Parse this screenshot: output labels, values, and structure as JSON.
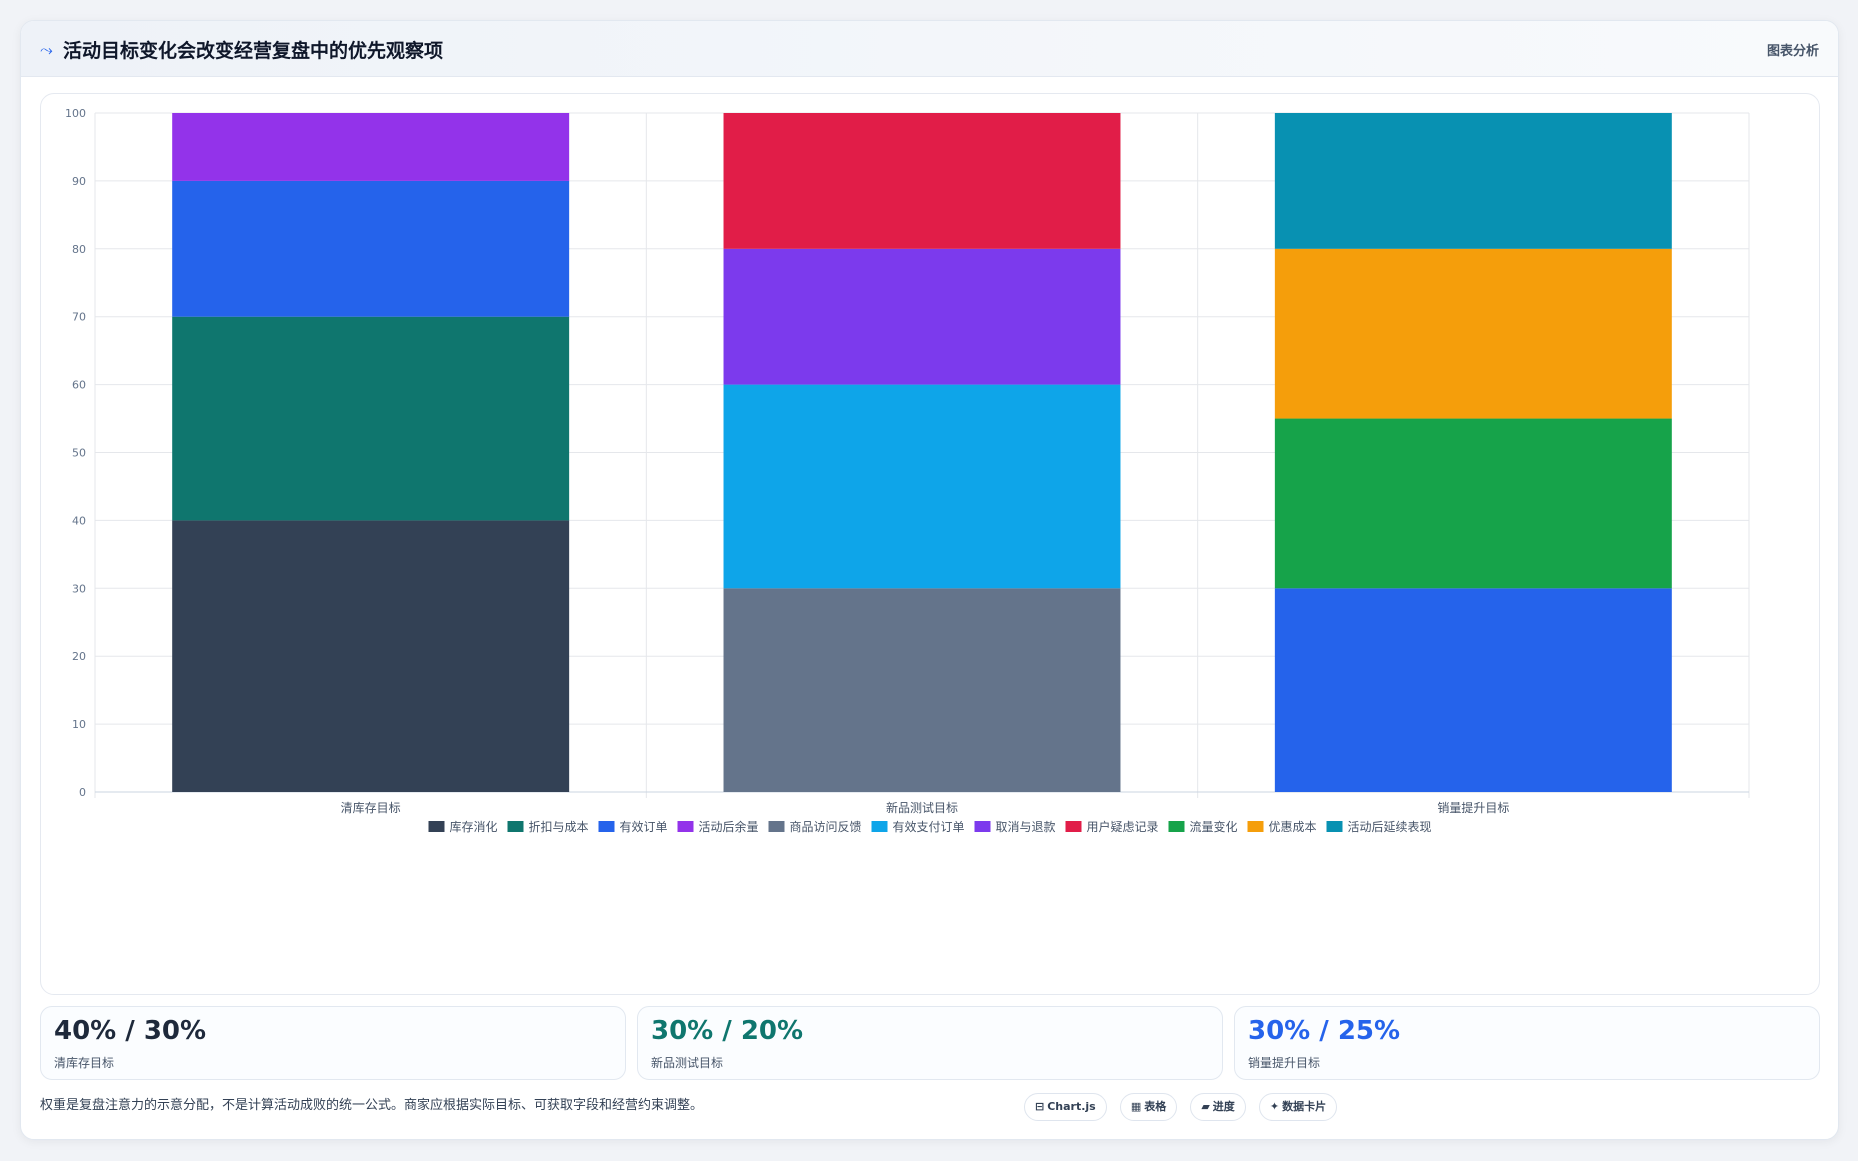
{
  "header": {
    "title": "活动目标变化会改变经营复盘中的优先观察项",
    "action_label": "图表分析",
    "icon": "trend-line-icon"
  },
  "chart_data": {
    "type": "bar",
    "stacked": true,
    "categories": [
      "清库存目标",
      "新品测试目标",
      "销量提升目标"
    ],
    "ylim": [
      0,
      100
    ],
    "yticks": [
      0,
      10,
      20,
      30,
      40,
      50,
      60,
      70,
      80,
      90,
      100
    ],
    "grid": true,
    "legend_position": "bottom",
    "series": [
      {
        "name": "库存消化",
        "color": "#334155",
        "values": [
          40,
          0,
          0
        ]
      },
      {
        "name": "折扣与成本",
        "color": "#0f766e",
        "values": [
          30,
          0,
          0
        ]
      },
      {
        "name": "有效订单",
        "color": "#2563eb",
        "values": [
          20,
          0,
          0
        ]
      },
      {
        "name": "活动后余量",
        "color": "#9333ea",
        "values": [
          10,
          0,
          0
        ]
      },
      {
        "name": "商品访问反馈",
        "color": "#64748b",
        "values": [
          0,
          30,
          0
        ]
      },
      {
        "name": "有效支付订单",
        "color": "#0ea5e9",
        "values": [
          0,
          30,
          0
        ]
      },
      {
        "name": "取消与退款",
        "color": "#7c3aed",
        "values": [
          0,
          20,
          0
        ]
      },
      {
        "name": "用户疑虑记录",
        "color": "#e11d48",
        "values": [
          0,
          20,
          0
        ]
      },
      {
        "name": "流量变化",
        "color": "#16a34a",
        "values": [
          0,
          0,
          25
        ]
      },
      {
        "name": "优惠成本",
        "color": "#f59e0b",
        "values": [
          0,
          0,
          25
        ]
      },
      {
        "name": "活动后延续表现",
        "color": "#0891b2",
        "values": [
          0,
          0,
          20
        ]
      }
    ],
    "extra_series_note": "",
    "third_base": {
      "name": "有效订单",
      "color": "#2563eb",
      "category_index": 2,
      "value": 30
    }
  },
  "stats": [
    {
      "value": "40% / 30%",
      "label": "清库存目标",
      "color": "#1e293b"
    },
    {
      "value": "30% / 20%",
      "label": "新品测试目标",
      "color": "#0f766e"
    },
    {
      "value": "30% / 25%",
      "label": "销量提升目标",
      "color": "#2563eb"
    }
  ],
  "footer": {
    "note": "权重是复盘注意力的示意分配，不是计算活动成败的统一公式。商家应根据实际目标、可获取字段和经营约束调整。",
    "chips": [
      {
        "icon": "⊟",
        "label": "Chart.js"
      },
      {
        "icon": "▦",
        "label": "表格"
      },
      {
        "icon": "▰",
        "label": "进度"
      },
      {
        "icon": "✦",
        "label": "数据卡片"
      }
    ]
  }
}
